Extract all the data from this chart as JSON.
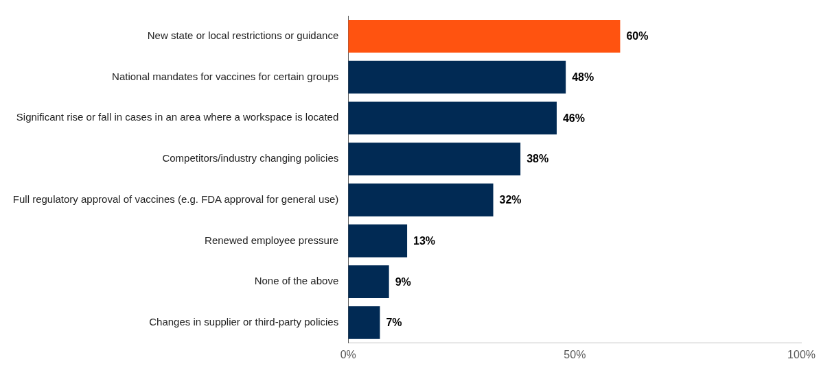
{
  "chart_data": {
    "type": "bar",
    "orientation": "horizontal",
    "categories": [
      "New state or local restrictions or guidance",
      "National mandates for vaccines for certain groups",
      "Significant rise or fall in cases in an area where a workspace is located",
      "Competitors/industry changing policies",
      "Full regulatory approval of vaccines (e.g. FDA approval for general use)",
      "Renewed employee pressure",
      "None of the above",
      "Changes in supplier or third-party policies"
    ],
    "values": [
      60,
      48,
      46,
      38,
      32,
      13,
      9,
      7
    ],
    "colors": [
      "#ff5310",
      "#012a54",
      "#012a54",
      "#012a54",
      "#012a54",
      "#012a54",
      "#012a54",
      "#012a54"
    ],
    "value_labels": [
      "60%",
      "48%",
      "46%",
      "38%",
      "32%",
      "13%",
      "9%",
      "7%"
    ],
    "xlim": [
      0,
      100
    ],
    "xticks": [
      {
        "value": 0,
        "label": "0%"
      },
      {
        "value": 50,
        "label": "50%"
      },
      {
        "value": 100,
        "label": "100%"
      }
    ],
    "grid": false,
    "legend": false
  }
}
